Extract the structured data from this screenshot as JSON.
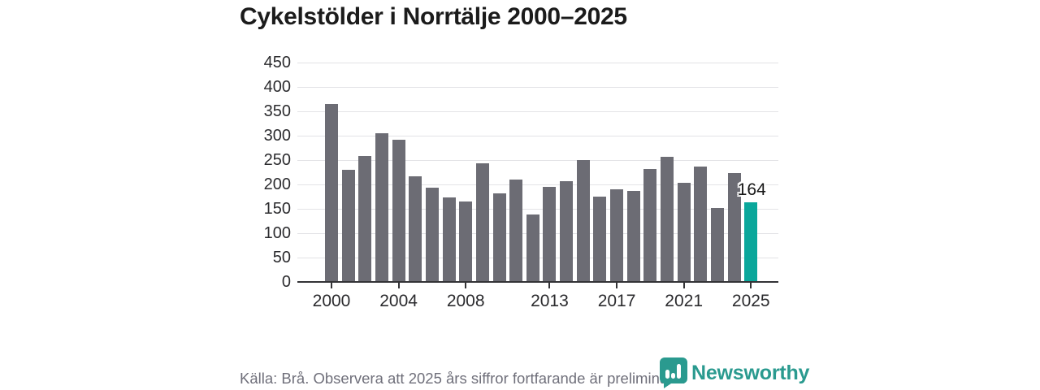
{
  "title": "Cykelstölder i Norrtälje 2000–2025",
  "chart_data": {
    "type": "bar",
    "categories": [
      2000,
      2001,
      2002,
      2003,
      2004,
      2005,
      2006,
      2007,
      2008,
      2009,
      2010,
      2011,
      2012,
      2013,
      2014,
      2015,
      2016,
      2017,
      2018,
      2019,
      2020,
      2021,
      2022,
      2023,
      2024,
      2025
    ],
    "values": [
      365,
      230,
      259,
      305,
      291,
      217,
      194,
      173,
      165,
      244,
      182,
      210,
      139,
      195,
      206,
      250,
      175,
      190,
      186,
      232,
      257,
      204,
      237,
      151,
      224,
      164
    ],
    "title": "Cykelstölder i Norrtälje 2000–2025",
    "xlabel": "",
    "ylabel": "",
    "ylim": [
      0,
      450
    ],
    "y_ticks": [
      0,
      50,
      100,
      150,
      200,
      250,
      300,
      350,
      400,
      450
    ],
    "x_tick_years": [
      2000,
      2004,
      2008,
      2013,
      2017,
      2021,
      2025
    ],
    "grid": true,
    "legend": "none",
    "bar_color": "#6c6c74",
    "highlight_color": "#0aa79b",
    "highlight_index": 25,
    "highlight_label": "164"
  },
  "footer": {
    "source_text": "Källa: Brå. Observera att 2025 års siffror fortfarande är preliminära.",
    "logo_text": "Newsworthy",
    "logo_color": "#2a9a8f",
    "logo_icon": "bar-chart-bubble-icon"
  }
}
